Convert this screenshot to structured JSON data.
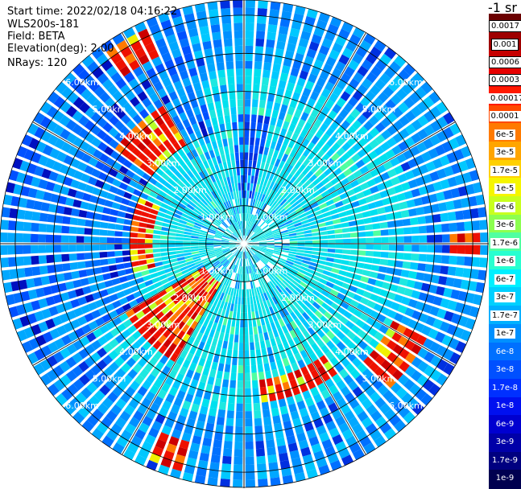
{
  "header": {
    "start_time": "Start time: 2022/02/18 04:16:22",
    "instrument": "WLS200s-181",
    "field": "Field: BETA",
    "elevation": "Elevation(deg): 2.00",
    "nrays": "NRays: 120"
  },
  "colorbar": {
    "title": "-1 sr",
    "boxed_labels": [
      "0.0017",
      "0.001",
      "0.0006",
      "0.0003"
    ],
    "labels": [
      "0.00017",
      "0.0001",
      "6e-5",
      "3e-5",
      "1.7e-5",
      "1e-5",
      "6e-6",
      "3e-6",
      "1.7e-6",
      "1e-6",
      "6e-7",
      "3e-7",
      "1.7e-7",
      "1e-7",
      "6e-8",
      "3e-8",
      "1.7e-8",
      "1e-8",
      "6e-9",
      "3e-9",
      "1.7e-9",
      "1e-9"
    ],
    "colors": [
      "#6b0000",
      "#9e0000",
      "#c60000",
      "#e60000",
      "#ff1a00",
      "#ff4a00",
      "#ff7a00",
      "#ffa500",
      "#ffd000",
      "#f5f500",
      "#c8ff1e",
      "#8cff50",
      "#50ffa0",
      "#28ffd0",
      "#00f0ff",
      "#00d0ff",
      "#00b0ff",
      "#0090ff",
      "#0070ff",
      "#0050ff",
      "#0030ff",
      "#0010f0",
      "#0000d0",
      "#0000a8",
      "#000080",
      "#000050"
    ]
  },
  "chart_data": {
    "type": "heatmap",
    "projection": "polar-ppi",
    "field": "BETA",
    "units": "-1 sr",
    "elevation_deg": 2.0,
    "n_rays": 120,
    "range_max_km": 6.4,
    "range_ring_labels": [
      "1.00km",
      "2.00km",
      "3.00km",
      "4.00km",
      "5.00km",
      "6.00km"
    ],
    "range_rings_km": [
      1,
      2,
      3,
      4,
      5,
      6
    ],
    "label_azimuths_deg": [
      45,
      135,
      225,
      315
    ],
    "background_level": "1e-7 to 3e-7",
    "high_backscatter_features": [
      {
        "azimuth_deg_range": [
          210,
          240
        ],
        "range_km": [
          1.2,
          3.5
        ],
        "level": "3e-5 to 0.001"
      },
      {
        "azimuth_deg_range": [
          255,
          295
        ],
        "range_km": [
          2.5,
          3.0
        ],
        "level": "1e-5 to 0.001"
      },
      {
        "azimuth_deg_range": [
          305,
          330
        ],
        "range_km": [
          3.0,
          4.2
        ],
        "level": "1e-5 to 0.001"
      },
      {
        "azimuth_deg_range": [
          145,
          175
        ],
        "range_km": [
          3.6,
          4.2
        ],
        "level": "3e-5 to 0.001"
      },
      {
        "azimuth_deg_range": [
          118,
          135
        ],
        "range_km": [
          4.5,
          5.4
        ],
        "level": "1e-5 to 0.0003"
      },
      {
        "azimuth_deg_range": [
          195,
          205
        ],
        "range_km": [
          5.5,
          6.1
        ],
        "level": "3e-5 to 0.001"
      },
      {
        "azimuth_deg_range": [
          325,
          335
        ],
        "range_km": [
          5.5,
          6.1
        ],
        "level": "1e-5 to 0.001"
      },
      {
        "azimuth_deg_range": [
          88,
          92
        ],
        "range_km": [
          5.5,
          6.3
        ],
        "level": "1e-5"
      }
    ]
  }
}
